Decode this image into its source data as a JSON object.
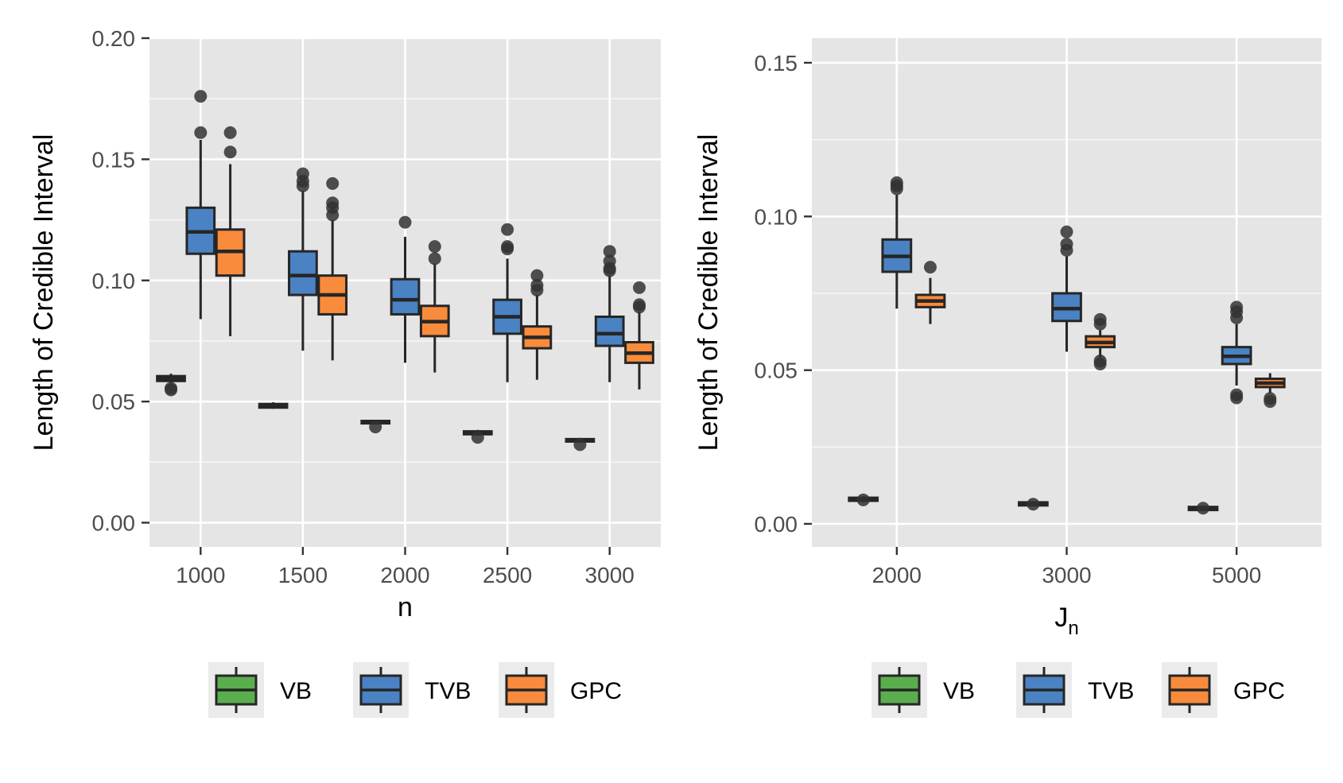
{
  "colors": {
    "panel_bg": "#E5E5E5",
    "grid": "#FFFFFF",
    "outline": "#262626",
    "VB": "#5AAE4E",
    "TVB": "#4A82C3",
    "GPC": "#F98B3C",
    "legend_key_bg": "#EBEBEB"
  },
  "chart_data": [
    {
      "type": "box",
      "xlabel": "n",
      "ylabel": "Length of Credible Interval",
      "ylim": [
        -0.01,
        0.2
      ],
      "yticks": [
        "0.00",
        "0.05",
        "0.10",
        "0.15",
        "0.20"
      ],
      "ytick_values": [
        0,
        0.05,
        0.1,
        0.15,
        0.2
      ],
      "categories": [
        "1000",
        "1500",
        "2000",
        "2500",
        "3000"
      ],
      "legend_position": "bottom",
      "series": [
        {
          "name": "VB",
          "boxes": [
            {
              "q1": 0.0585,
              "median": 0.0595,
              "q3": 0.0605,
              "lo": 0.0575,
              "hi": 0.0615,
              "outliers": [
                0.0555,
                0.0548
              ]
            },
            {
              "q1": 0.0475,
              "median": 0.0483,
              "q3": 0.049,
              "lo": 0.047,
              "hi": 0.0497,
              "outliers": []
            },
            {
              "q1": 0.041,
              "median": 0.0415,
              "q3": 0.042,
              "lo": 0.0405,
              "hi": 0.0425,
              "outliers": [
                0.0395
              ]
            },
            {
              "q1": 0.0365,
              "median": 0.037,
              "q3": 0.0377,
              "lo": 0.036,
              "hi": 0.0383,
              "outliers": [
                0.0352
              ]
            },
            {
              "q1": 0.0335,
              "median": 0.034,
              "q3": 0.0345,
              "lo": 0.033,
              "hi": 0.035,
              "outliers": [
                0.0322
              ]
            }
          ]
        },
        {
          "name": "TVB",
          "boxes": [
            {
              "q1": 0.111,
              "median": 0.12,
              "q3": 0.13,
              "lo": 0.084,
              "hi": 0.158,
              "outliers": [
                0.161,
                0.176
              ]
            },
            {
              "q1": 0.094,
              "median": 0.102,
              "q3": 0.112,
              "lo": 0.071,
              "hi": 0.137,
              "outliers": [
                0.139,
                0.141,
                0.144
              ]
            },
            {
              "q1": 0.086,
              "median": 0.092,
              "q3": 0.1005,
              "lo": 0.066,
              "hi": 0.118,
              "outliers": [
                0.124
              ]
            },
            {
              "q1": 0.078,
              "median": 0.085,
              "q3": 0.092,
              "lo": 0.058,
              "hi": 0.109,
              "outliers": [
                0.113,
                0.114,
                0.121
              ]
            },
            {
              "q1": 0.073,
              "median": 0.078,
              "q3": 0.085,
              "lo": 0.058,
              "hi": 0.102,
              "outliers": [
                0.104,
                0.105,
                0.108,
                0.112
              ]
            }
          ]
        },
        {
          "name": "GPC",
          "boxes": [
            {
              "q1": 0.102,
              "median": 0.112,
              "q3": 0.121,
              "lo": 0.077,
              "hi": 0.148,
              "outliers": [
                0.153,
                0.161
              ]
            },
            {
              "q1": 0.086,
              "median": 0.094,
              "q3": 0.102,
              "lo": 0.067,
              "hi": 0.125,
              "outliers": [
                0.127,
                0.13,
                0.132,
                0.14
              ]
            },
            {
              "q1": 0.077,
              "median": 0.083,
              "q3": 0.0895,
              "lo": 0.062,
              "hi": 0.107,
              "outliers": [
                0.109,
                0.114
              ]
            },
            {
              "q1": 0.072,
              "median": 0.0765,
              "q3": 0.081,
              "lo": 0.059,
              "hi": 0.094,
              "outliers": [
                0.096,
                0.098,
                0.102
              ]
            },
            {
              "q1": 0.066,
              "median": 0.07,
              "q3": 0.0745,
              "lo": 0.055,
              "hi": 0.087,
              "outliers": [
                0.089,
                0.09,
                0.097
              ]
            }
          ]
        }
      ]
    },
    {
      "type": "box",
      "xlabel_main": "J",
      "xlabel_sub": "n",
      "ylabel": "Length of Credible Interval",
      "ylim": [
        -0.0075,
        0.158
      ],
      "yticks": [
        "0.00",
        "0.05",
        "0.10",
        "0.15"
      ],
      "ytick_values": [
        0,
        0.05,
        0.1,
        0.15
      ],
      "categories": [
        "2000",
        "3000",
        "5000"
      ],
      "legend_position": "bottom",
      "series": [
        {
          "name": "VB",
          "boxes": [
            {
              "q1": 0.0075,
              "median": 0.008,
              "q3": 0.0085,
              "lo": 0.007,
              "hi": 0.009,
              "outliers": [
                0.0078
              ]
            },
            {
              "q1": 0.006,
              "median": 0.0065,
              "q3": 0.007,
              "lo": 0.0057,
              "hi": 0.0073,
              "outliers": [
                0.0064
              ]
            },
            {
              "q1": 0.0045,
              "median": 0.005,
              "q3": 0.0055,
              "lo": 0.0042,
              "hi": 0.0058,
              "outliers": [
                0.0051
              ]
            }
          ]
        },
        {
          "name": "TVB",
          "boxes": [
            {
              "q1": 0.082,
              "median": 0.087,
              "q3": 0.0925,
              "lo": 0.07,
              "hi": 0.107,
              "outliers": [
                0.109,
                0.11,
                0.111
              ]
            },
            {
              "q1": 0.066,
              "median": 0.07,
              "q3": 0.075,
              "lo": 0.056,
              "hi": 0.087,
              "outliers": [
                0.089,
                0.091,
                0.095
              ]
            },
            {
              "q1": 0.052,
              "median": 0.0545,
              "q3": 0.0575,
              "lo": 0.045,
              "hi": 0.065,
              "outliers": [
                0.041,
                0.042,
                0.067,
                0.069,
                0.0705
              ]
            }
          ]
        },
        {
          "name": "GPC",
          "boxes": [
            {
              "q1": 0.0705,
              "median": 0.0725,
              "q3": 0.0745,
              "lo": 0.065,
              "hi": 0.08,
              "outliers": [
                0.0835
              ]
            },
            {
              "q1": 0.0575,
              "median": 0.059,
              "q3": 0.061,
              "lo": 0.054,
              "hi": 0.063,
              "outliers": [
                0.052,
                0.053,
                0.065,
                0.0665
              ]
            },
            {
              "q1": 0.0445,
              "median": 0.0458,
              "q3": 0.0472,
              "lo": 0.0425,
              "hi": 0.049,
              "outliers": [
                0.0398,
                0.0408
              ]
            }
          ]
        }
      ]
    }
  ]
}
